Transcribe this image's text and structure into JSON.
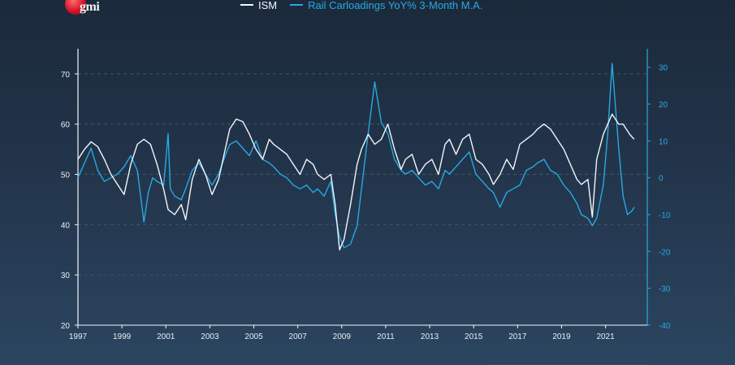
{
  "logo": {
    "text": "gmi"
  },
  "colors": {
    "ism": "#f3f6f9",
    "rail": "#27a9e1",
    "axis_left": "#f3f6f9",
    "axis_right": "#27a9e1",
    "grid": "#3b5670",
    "tick_text": "#e8eef5"
  },
  "chart_data": {
    "type": "line",
    "title": "",
    "xlabel": "",
    "ylabel": "",
    "x_tick_labels": [
      "1997",
      "1999",
      "2001",
      "2003",
      "2005",
      "2007",
      "2009",
      "2011",
      "2013",
      "2015",
      "2017",
      "2019",
      "2021"
    ],
    "xlim": [
      1997.0,
      2022.9
    ],
    "left_axis": {
      "ylim": [
        20,
        75
      ],
      "ticks": [
        20,
        30,
        40,
        50,
        60,
        70
      ]
    },
    "right_axis": {
      "ylim": [
        -40,
        35
      ],
      "ticks": [
        -40,
        -30,
        -20,
        -10,
        0,
        10,
        20,
        30
      ]
    },
    "grid": "horizontal dashed at left-axis ticks",
    "legend": "top-center",
    "series": [
      {
        "name": "ISM",
        "axis": "left",
        "points": [
          [
            1997.0,
            53
          ],
          [
            1997.3,
            55
          ],
          [
            1997.6,
            56.5
          ],
          [
            1997.9,
            55.5
          ],
          [
            1998.2,
            53
          ],
          [
            1998.5,
            50
          ],
          [
            1998.8,
            48
          ],
          [
            1999.1,
            46
          ],
          [
            1999.4,
            52
          ],
          [
            1999.7,
            56
          ],
          [
            2000.0,
            57
          ],
          [
            2000.3,
            56
          ],
          [
            2000.6,
            52
          ],
          [
            2000.9,
            47
          ],
          [
            2001.1,
            43
          ],
          [
            2001.4,
            42
          ],
          [
            2001.7,
            44
          ],
          [
            2001.9,
            41
          ],
          [
            2002.2,
            49
          ],
          [
            2002.5,
            53
          ],
          [
            2002.8,
            50
          ],
          [
            2003.1,
            46
          ],
          [
            2003.4,
            49
          ],
          [
            2003.7,
            55
          ],
          [
            2003.9,
            59
          ],
          [
            2004.2,
            61
          ],
          [
            2004.5,
            60.5
          ],
          [
            2004.8,
            58
          ],
          [
            2005.1,
            55
          ],
          [
            2005.4,
            53
          ],
          [
            2005.7,
            57
          ],
          [
            2005.9,
            56
          ],
          [
            2006.2,
            55
          ],
          [
            2006.5,
            54
          ],
          [
            2006.8,
            52
          ],
          [
            2007.1,
            50
          ],
          [
            2007.4,
            53
          ],
          [
            2007.7,
            52
          ],
          [
            2007.9,
            50
          ],
          [
            2008.2,
            49
          ],
          [
            2008.5,
            50
          ],
          [
            2008.7,
            44
          ],
          [
            2008.9,
            35
          ],
          [
            2009.1,
            37
          ],
          [
            2009.4,
            44
          ],
          [
            2009.7,
            52
          ],
          [
            2009.9,
            55
          ],
          [
            2010.2,
            58
          ],
          [
            2010.5,
            56
          ],
          [
            2010.8,
            57
          ],
          [
            2011.1,
            60
          ],
          [
            2011.4,
            55
          ],
          [
            2011.7,
            51
          ],
          [
            2011.9,
            53
          ],
          [
            2012.2,
            54
          ],
          [
            2012.5,
            50
          ],
          [
            2012.8,
            52
          ],
          [
            2013.1,
            53
          ],
          [
            2013.4,
            50
          ],
          [
            2013.7,
            56
          ],
          [
            2013.9,
            57
          ],
          [
            2014.2,
            54
          ],
          [
            2014.5,
            57
          ],
          [
            2014.8,
            58
          ],
          [
            2015.1,
            53
          ],
          [
            2015.4,
            52
          ],
          [
            2015.7,
            50
          ],
          [
            2015.9,
            48
          ],
          [
            2016.2,
            50
          ],
          [
            2016.5,
            53
          ],
          [
            2016.8,
            51
          ],
          [
            2017.1,
            56
          ],
          [
            2017.4,
            57
          ],
          [
            2017.7,
            58
          ],
          [
            2017.9,
            59
          ],
          [
            2018.2,
            60
          ],
          [
            2018.5,
            59
          ],
          [
            2018.8,
            57
          ],
          [
            2019.1,
            55
          ],
          [
            2019.4,
            52
          ],
          [
            2019.7,
            49
          ],
          [
            2019.9,
            48
          ],
          [
            2020.2,
            49
          ],
          [
            2020.4,
            41.5
          ],
          [
            2020.6,
            53
          ],
          [
            2020.9,
            58
          ],
          [
            2021.1,
            60
          ],
          [
            2021.3,
            62
          ],
          [
            2021.6,
            60
          ],
          [
            2021.8,
            60
          ],
          [
            2022.1,
            58
          ],
          [
            2022.3,
            57
          ]
        ]
      },
      {
        "name": "Rail Carloadings YoY% 3-Month M.A.",
        "axis": "right",
        "points": [
          [
            1997.0,
            0
          ],
          [
            1997.3,
            4
          ],
          [
            1997.6,
            8
          ],
          [
            1997.9,
            2
          ],
          [
            1998.2,
            -1
          ],
          [
            1998.5,
            0
          ],
          [
            1998.8,
            1
          ],
          [
            1999.1,
            3
          ],
          [
            1999.4,
            6
          ],
          [
            1999.7,
            2
          ],
          [
            2000.0,
            -12
          ],
          [
            2000.2,
            -4
          ],
          [
            2000.4,
            0
          ],
          [
            2000.6,
            -1
          ],
          [
            2000.9,
            -2
          ],
          [
            2001.1,
            12
          ],
          [
            2001.2,
            -3
          ],
          [
            2001.4,
            -5
          ],
          [
            2001.7,
            -6
          ],
          [
            2001.9,
            -3
          ],
          [
            2002.2,
            2
          ],
          [
            2002.5,
            4
          ],
          [
            2002.8,
            1
          ],
          [
            2003.1,
            -2
          ],
          [
            2003.4,
            1
          ],
          [
            2003.7,
            6
          ],
          [
            2003.9,
            9
          ],
          [
            2004.2,
            10
          ],
          [
            2004.5,
            8
          ],
          [
            2004.8,
            6
          ],
          [
            2005.1,
            10
          ],
          [
            2005.4,
            5
          ],
          [
            2005.7,
            4
          ],
          [
            2005.9,
            3
          ],
          [
            2006.2,
            1
          ],
          [
            2006.5,
            0
          ],
          [
            2006.8,
            -2
          ],
          [
            2007.1,
            -3
          ],
          [
            2007.4,
            -2
          ],
          [
            2007.7,
            -4
          ],
          [
            2007.9,
            -3
          ],
          [
            2008.2,
            -5
          ],
          [
            2008.5,
            -1
          ],
          [
            2008.7,
            -10
          ],
          [
            2008.9,
            -16
          ],
          [
            2009.1,
            -19
          ],
          [
            2009.4,
            -18
          ],
          [
            2009.7,
            -13
          ],
          [
            2009.9,
            -3
          ],
          [
            2010.2,
            12
          ],
          [
            2010.5,
            26
          ],
          [
            2010.8,
            15
          ],
          [
            2011.1,
            12
          ],
          [
            2011.4,
            5
          ],
          [
            2011.7,
            2
          ],
          [
            2011.9,
            1
          ],
          [
            2012.2,
            2
          ],
          [
            2012.5,
            0
          ],
          [
            2012.8,
            -2
          ],
          [
            2013.1,
            -1
          ],
          [
            2013.4,
            -3
          ],
          [
            2013.7,
            2
          ],
          [
            2013.9,
            1
          ],
          [
            2014.2,
            3
          ],
          [
            2014.5,
            5
          ],
          [
            2014.8,
            7
          ],
          [
            2015.1,
            1
          ],
          [
            2015.4,
            -1
          ],
          [
            2015.7,
            -3
          ],
          [
            2015.9,
            -4
          ],
          [
            2016.2,
            -8
          ],
          [
            2016.5,
            -4
          ],
          [
            2016.8,
            -3
          ],
          [
            2017.1,
            -2
          ],
          [
            2017.4,
            2
          ],
          [
            2017.7,
            3
          ],
          [
            2017.9,
            4
          ],
          [
            2018.2,
            5
          ],
          [
            2018.5,
            2
          ],
          [
            2018.8,
            1
          ],
          [
            2019.1,
            -2
          ],
          [
            2019.4,
            -4
          ],
          [
            2019.7,
            -7
          ],
          [
            2019.9,
            -10
          ],
          [
            2020.2,
            -11
          ],
          [
            2020.4,
            -13
          ],
          [
            2020.6,
            -11
          ],
          [
            2020.9,
            -2
          ],
          [
            2021.1,
            12
          ],
          [
            2021.3,
            31
          ],
          [
            2021.6,
            8
          ],
          [
            2021.8,
            -5
          ],
          [
            2022.0,
            -10
          ],
          [
            2022.2,
            -9
          ],
          [
            2022.3,
            -8
          ]
        ]
      }
    ]
  }
}
